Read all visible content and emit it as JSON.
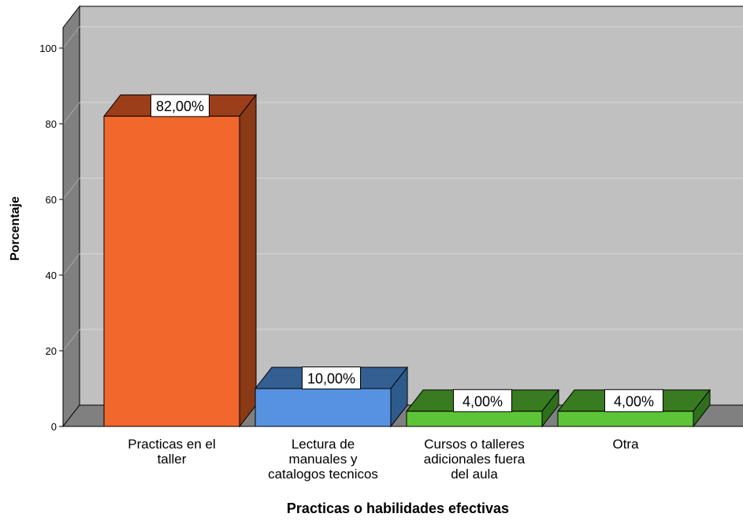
{
  "chart_data": {
    "type": "bar",
    "style": "3d",
    "categories": [
      [
        "Practicas en el",
        "taller"
      ],
      [
        "Lectura de",
        "manuales y",
        "catalogos tecnicos"
      ],
      [
        "Cursos o talleres",
        "adicionales fuera",
        "del aula"
      ],
      [
        "Otra"
      ]
    ],
    "values": [
      82,
      10,
      4,
      4
    ],
    "data_labels": [
      "82,00%",
      "10,00%",
      "4,00%",
      "4,00%"
    ],
    "bar_colors": [
      {
        "front": "#f2672b",
        "top": "#9c3e19",
        "side": "#8a3a16"
      },
      {
        "front": "#5692e0",
        "top": "#335f92",
        "side": "#2f5a8c"
      },
      {
        "front": "#5dc437",
        "top": "#387b20",
        "side": "#2f6f1b"
      },
      {
        "front": "#5dc437",
        "top": "#387b20",
        "side": "#2f6f1b"
      }
    ],
    "xlabel": "Practicas o habilidades efectivas",
    "ylabel": "Porcentaje",
    "ylim": [
      0,
      105
    ],
    "yticks": [
      0,
      20,
      40,
      60,
      80,
      100
    ],
    "grid": true,
    "background_color": "#c0c0c0",
    "wall_color": "#808080"
  }
}
